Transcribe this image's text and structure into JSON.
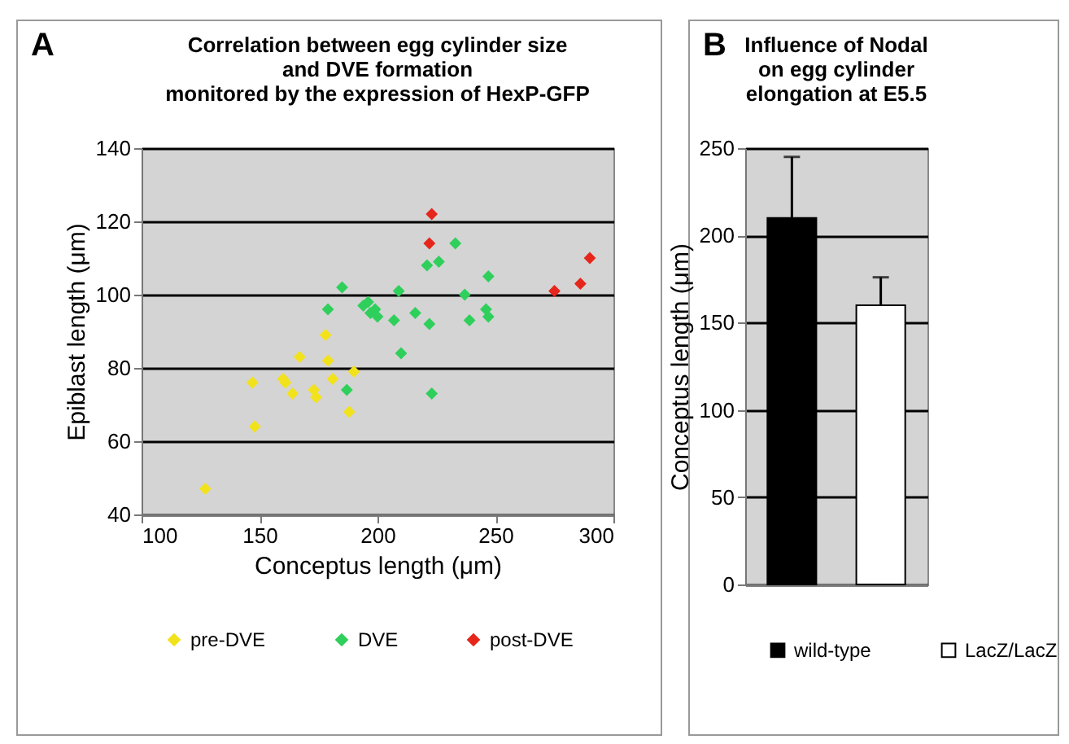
{
  "chart_data": [
    {
      "type": "scatter",
      "title": "Correlation between egg cylinder size\nand DVE formation\nmonitored by the expression of HexP-GFP",
      "annotations": [
        "A"
      ],
      "xlabel": "Conceptus length (μm)",
      "ylabel": "Epiblast length (μm)",
      "xlim": [
        100,
        300
      ],
      "xticks": [
        100,
        150,
        200,
        250,
        300
      ],
      "ylim": [
        40,
        140
      ],
      "yticks": [
        40,
        60,
        80,
        100,
        120,
        140
      ],
      "grid": "y",
      "legend": "bottom",
      "marker": "diamond",
      "series": [
        {
          "name": "pre-DVE",
          "color": "#f2e21c",
          "x": [
            127,
            147,
            148,
            160,
            161,
            164,
            167,
            173,
            174,
            178,
            179,
            181,
            190,
            188
          ],
          "values": [
            47,
            76,
            64,
            77,
            76,
            73,
            83,
            74,
            72,
            89,
            82,
            77,
            79,
            68
          ]
        },
        {
          "name": "DVE",
          "color": "#2fcf5c",
          "x": [
            179,
            185,
            187,
            194,
            196,
            197,
            199,
            200,
            207,
            209,
            210,
            216,
            222,
            221,
            226,
            223,
            233,
            237,
            239,
            247,
            246,
            247
          ],
          "values": [
            96,
            102,
            74,
            97,
            98,
            95,
            96,
            94,
            93,
            101,
            84,
            95,
            92,
            108,
            109,
            73,
            114,
            100,
            93,
            105,
            96,
            94
          ]
        },
        {
          "name": "post-DVE",
          "color": "#e6261b",
          "x": [
            223,
            222,
            275,
            286,
            290
          ],
          "values": [
            122,
            114,
            101,
            103,
            110
          ]
        }
      ]
    },
    {
      "type": "bar",
      "title": "Influence of Nodal\non egg cylinder\nelongation at E5.5",
      "annotations": [
        "B"
      ],
      "ylabel": "Conceptus length (μm)",
      "categories": [
        null,
        null
      ],
      "ylim": [
        0,
        250
      ],
      "yticks": [
        0,
        50,
        100,
        150,
        200,
        250
      ],
      "grid": "y",
      "legend": "bottom",
      "series": [
        {
          "name": "wild-type",
          "color": "#000000",
          "values": [
            210,
            null
          ],
          "errors": [
            [
              210,
              245
            ],
            null
          ]
        },
        {
          "name": "LacZ/LacZ",
          "color": "#ffffff",
          "values": [
            null,
            160
          ],
          "errors": [
            null,
            [
              160,
              176
            ]
          ]
        }
      ]
    }
  ]
}
